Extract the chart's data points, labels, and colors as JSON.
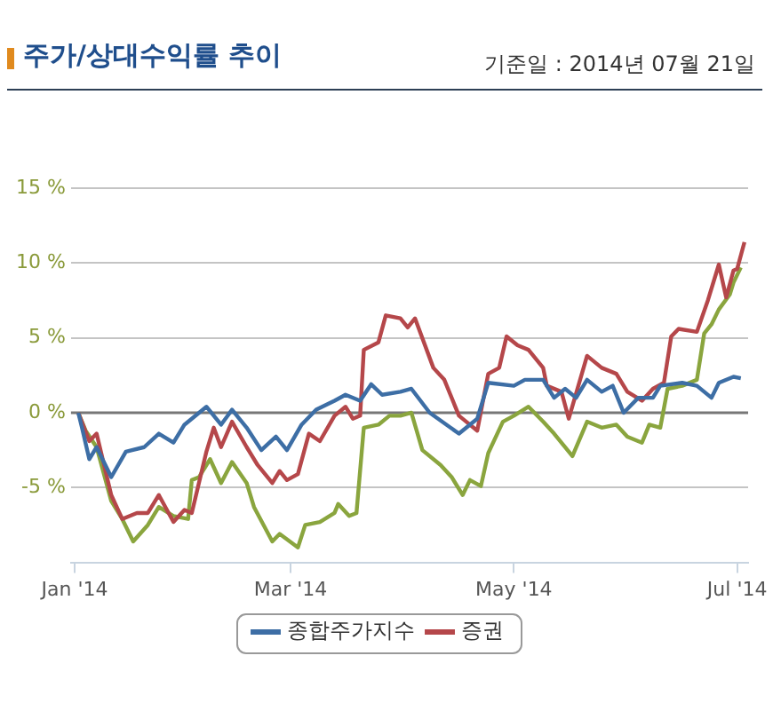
{
  "chart_data": {
    "type": "line",
    "title": "주가/상대수익률 추이",
    "subtitle": "기준일 : 2014년 07월 21일",
    "xlim": [
      "2013-12-31",
      "2014-07-04"
    ],
    "xticks": [
      {
        "value": "2014-01-01",
        "label": "Jan '14"
      },
      {
        "value": "2014-03-01",
        "label": "Mar '14"
      },
      {
        "value": "2014-05-01",
        "label": "May '14"
      },
      {
        "value": "2014-07-01",
        "label": "Jul '14"
      }
    ],
    "ylim": [
      -10,
      15
    ],
    "yticks": [
      {
        "value": -5,
        "label": "-5 %"
      },
      {
        "value": 0,
        "label": "0 %"
      },
      {
        "value": 5,
        "label": "5 %"
      },
      {
        "value": 10,
        "label": "10 %"
      },
      {
        "value": 15,
        "label": "15 %"
      }
    ],
    "grid": "y",
    "legend": "bottom",
    "marker": "none",
    "line_style": "solid",
    "ref_lines": [
      {
        "axis": "y",
        "value": 0,
        "color": "#777777"
      }
    ],
    "series": [
      {
        "name": "종합주가지수",
        "color": "#3d6ea5",
        "x": [
          "2014-01-02",
          "2014-01-03",
          "2014-01-05",
          "2014-01-07",
          "2014-01-11",
          "2014-01-15",
          "2014-01-20",
          "2014-01-24",
          "2014-01-28",
          "2014-01-31",
          "2014-02-06",
          "2014-02-10",
          "2014-02-13",
          "2014-02-17",
          "2014-02-21",
          "2014-02-25",
          "2014-02-28",
          "2014-03-04",
          "2014-03-08",
          "2014-03-13",
          "2014-03-16",
          "2014-03-20",
          "2014-03-23",
          "2014-03-26",
          "2014-03-31",
          "2014-04-03",
          "2014-04-08",
          "2014-04-16",
          "2014-04-21",
          "2014-04-24",
          "2014-05-01",
          "2014-05-04",
          "2014-05-09",
          "2014-05-12",
          "2014-05-15",
          "2014-05-18",
          "2014-05-21",
          "2014-05-25",
          "2014-05-28",
          "2014-05-31",
          "2014-06-04",
          "2014-06-08",
          "2014-06-10",
          "2014-06-16",
          "2014-06-20",
          "2014-06-24",
          "2014-06-26",
          "2014-06-30",
          "2014-07-02"
        ],
        "values": [
          0,
          -1.0,
          -3.1,
          -2.3,
          -4.3,
          -2.6,
          -2.3,
          -1.4,
          -2.0,
          -0.8,
          0.4,
          -0.8,
          0.2,
          -1.0,
          -2.5,
          -1.6,
          -2.5,
          -0.8,
          0.2,
          0.8,
          1.2,
          0.8,
          1.9,
          1.2,
          1.4,
          1.6,
          0,
          -1.4,
          -0.4,
          2.0,
          1.8,
          2.2,
          2.2,
          1.0,
          1.6,
          1.0,
          2.2,
          1.4,
          1.8,
          0,
          1.0,
          1.0,
          1.8,
          2.0,
          1.8,
          1.0,
          2.0,
          2.4,
          2.3
        ]
      },
      {
        "name": "증권",
        "color": "#b5474a",
        "x": [
          "2014-01-02",
          "2014-01-05",
          "2014-01-07",
          "2014-01-11",
          "2014-01-14",
          "2014-01-18",
          "2014-01-21",
          "2014-01-24",
          "2014-01-28",
          "2014-01-31",
          "2014-02-02",
          "2014-02-06",
          "2014-02-08",
          "2014-02-10",
          "2014-02-13",
          "2014-02-17",
          "2014-02-20",
          "2014-02-24",
          "2014-02-26",
          "2014-02-28",
          "2014-03-03",
          "2014-03-06",
          "2014-03-09",
          "2014-03-13",
          "2014-03-16",
          "2014-03-18",
          "2014-03-20",
          "2014-03-21",
          "2014-03-25",
          "2014-03-27",
          "2014-03-31",
          "2014-04-02",
          "2014-04-04",
          "2014-04-09",
          "2014-04-12",
          "2014-04-16",
          "2014-04-18",
          "2014-04-21",
          "2014-04-24",
          "2014-04-27",
          "2014-04-29",
          "2014-05-02",
          "2014-05-05",
          "2014-05-09",
          "2014-05-10",
          "2014-05-14",
          "2014-05-16",
          "2014-05-21",
          "2014-05-25",
          "2014-05-29",
          "2014-06-01",
          "2014-06-05",
          "2014-06-08",
          "2014-06-11",
          "2014-06-13",
          "2014-06-15",
          "2014-06-20",
          "2014-06-23",
          "2014-06-26",
          "2014-06-28",
          "2014-06-30",
          "2014-07-01",
          "2014-07-03"
        ],
        "values": [
          0,
          -1.9,
          -1.4,
          -5.5,
          -7.1,
          -6.7,
          -6.7,
          -5.5,
          -7.3,
          -6.5,
          -6.7,
          -2.6,
          -1.0,
          -2.3,
          -0.6,
          -2.3,
          -3.5,
          -4.7,
          -3.9,
          -4.5,
          -4.1,
          -1.4,
          -1.9,
          -0.2,
          0.4,
          -0.4,
          -0.2,
          4.2,
          4.7,
          6.5,
          6.3,
          5.7,
          6.3,
          3.0,
          2.2,
          -0.2,
          -0.6,
          -1.2,
          2.6,
          3.0,
          5.1,
          4.5,
          4.2,
          3.0,
          1.8,
          1.4,
          -0.4,
          3.8,
          3.0,
          2.6,
          1.4,
          0.8,
          1.6,
          2.0,
          5.1,
          5.6,
          5.4,
          7.5,
          9.9,
          7.7,
          9.5,
          9.6,
          11.4
        ]
      },
      {
        "color": "#8aa53e",
        "x": [
          "2014-01-02",
          "2014-01-04",
          "2014-01-07",
          "2014-01-11",
          "2014-01-14",
          "2014-01-17",
          "2014-01-21",
          "2014-01-24",
          "2014-01-28",
          "2014-02-01",
          "2014-02-02",
          "2014-02-04",
          "2014-02-07",
          "2014-02-10",
          "2014-02-13",
          "2014-02-17",
          "2014-02-19",
          "2014-02-24",
          "2014-02-26",
          "2014-03-03",
          "2014-03-05",
          "2014-03-09",
          "2014-03-13",
          "2014-03-14",
          "2014-03-17",
          "2014-03-19",
          "2014-03-21",
          "2014-03-25",
          "2014-03-28",
          "2014-03-31",
          "2014-04-03",
          "2014-04-06",
          "2014-04-11",
          "2014-04-14",
          "2014-04-17",
          "2014-04-19",
          "2014-04-22",
          "2014-04-24",
          "2014-04-28",
          "2014-05-01",
          "2014-05-05",
          "2014-05-09",
          "2014-05-12",
          "2014-05-17",
          "2014-05-21",
          "2014-05-25",
          "2014-05-29",
          "2014-06-01",
          "2014-06-05",
          "2014-06-07",
          "2014-06-10",
          "2014-06-12",
          "2014-06-16",
          "2014-06-20",
          "2014-06-22",
          "2014-06-24",
          "2014-06-26",
          "2014-06-29",
          "2014-06-30",
          "2014-07-02"
        ],
        "values": [
          0,
          -1.2,
          -2.3,
          -5.9,
          -7.1,
          -8.6,
          -7.5,
          -6.3,
          -6.9,
          -7.1,
          -4.5,
          -4.3,
          -3.1,
          -4.7,
          -3.3,
          -4.7,
          -6.3,
          -8.6,
          -8.1,
          -9.0,
          -7.5,
          -7.3,
          -6.7,
          -6.1,
          -6.9,
          -6.7,
          -1.0,
          -0.8,
          -0.2,
          -0.2,
          0,
          -2.5,
          -3.5,
          -4.3,
          -5.5,
          -4.5,
          -4.9,
          -2.7,
          -0.6,
          -0.2,
          0.4,
          -0.6,
          -1.4,
          -2.9,
          -0.6,
          -1.0,
          -0.8,
          -1.6,
          -2.0,
          -0.8,
          -1.0,
          1.6,
          1.8,
          2.2,
          5.3,
          5.9,
          6.9,
          7.9,
          8.7,
          9.7
        ]
      }
    ]
  }
}
